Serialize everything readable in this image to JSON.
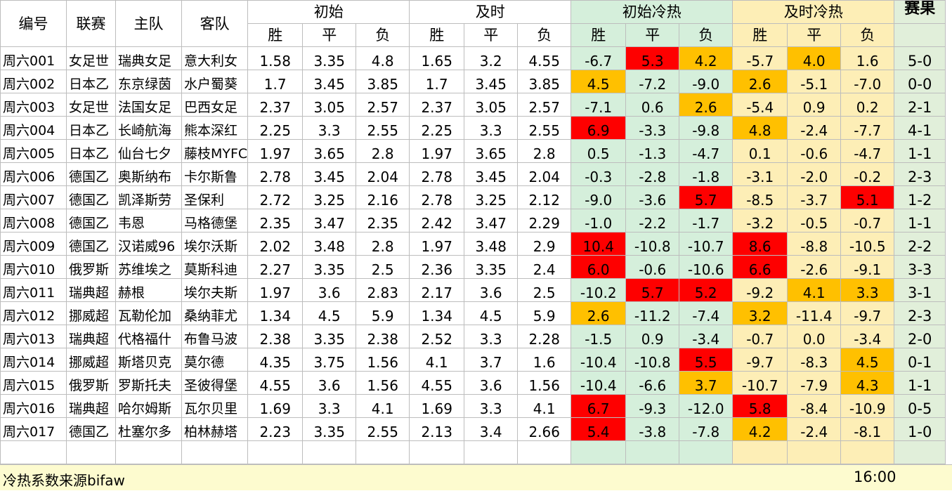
{
  "headers": {
    "id": "编号",
    "league": "联赛",
    "home": "主队",
    "away": "客队",
    "initial": "初始",
    "live": "及时",
    "initial_heat": "初始冷热",
    "live_heat": "及时冷热",
    "result": "赛果",
    "win": "胜",
    "draw": "平",
    "lose": "负"
  },
  "rows": [
    {
      "id": "周六001",
      "league": "女足世",
      "home": "瑞典女足",
      "away": "意大利女",
      "o": [
        "1.58",
        "3.35",
        "4.8"
      ],
      "l": [
        "1.65",
        "3.2",
        "4.55"
      ],
      "ih": [
        "-6.7",
        "5.3",
        "4.2"
      ],
      "lh": [
        "-5.7",
        "4.0",
        "1.6"
      ],
      "res": "5-0"
    },
    {
      "id": "周六002",
      "league": "日本乙",
      "home": "东京绿茵",
      "away": "水户蜀葵",
      "o": [
        "1.7",
        "3.45",
        "3.85"
      ],
      "l": [
        "1.7",
        "3.45",
        "3.85"
      ],
      "ih": [
        "4.5",
        "-7.2",
        "-9.0"
      ],
      "lh": [
        "2.6",
        "-5.1",
        "-7.0"
      ],
      "res": "0-0"
    },
    {
      "id": "周六003",
      "league": "女足世",
      "home": "法国女足",
      "away": "巴西女足",
      "o": [
        "2.37",
        "3.05",
        "2.57"
      ],
      "l": [
        "2.37",
        "3.05",
        "2.57"
      ],
      "ih": [
        "-7.1",
        "0.6",
        "2.6"
      ],
      "lh": [
        "-5.4",
        "0.9",
        "0.2"
      ],
      "res": "2-1"
    },
    {
      "id": "周六004",
      "league": "日本乙",
      "home": "长崎航海",
      "away": "熊本深红",
      "o": [
        "2.25",
        "3.3",
        "2.55"
      ],
      "l": [
        "2.25",
        "3.3",
        "2.55"
      ],
      "ih": [
        "6.9",
        "-3.3",
        "-9.8"
      ],
      "lh": [
        "4.8",
        "-2.4",
        "-7.7"
      ],
      "res": "4-1"
    },
    {
      "id": "周六005",
      "league": "日本乙",
      "home": "仙台七夕",
      "away": "藤枝MYFC",
      "o": [
        "1.97",
        "3.65",
        "2.8"
      ],
      "l": [
        "1.97",
        "3.65",
        "2.8"
      ],
      "ih": [
        "0.5",
        "-1.3",
        "-4.7"
      ],
      "lh": [
        "0.1",
        "-0.6",
        "-4.7"
      ],
      "res": "1-1"
    },
    {
      "id": "周六006",
      "league": "德国乙",
      "home": "奥斯纳布",
      "away": "卡尔斯鲁",
      "o": [
        "2.78",
        "3.45",
        "2.04"
      ],
      "l": [
        "2.78",
        "3.45",
        "2.04"
      ],
      "ih": [
        "-0.3",
        "-2.8",
        "-1.8"
      ],
      "lh": [
        "-3.1",
        "-2.0",
        "-0.2"
      ],
      "res": "2-3"
    },
    {
      "id": "周六007",
      "league": "德国乙",
      "home": "凯泽斯劳",
      "away": "圣保利",
      "o": [
        "2.72",
        "3.25",
        "2.16"
      ],
      "l": [
        "2.78",
        "3.25",
        "2.12"
      ],
      "ih": [
        "-9.0",
        "-3.6",
        "5.7"
      ],
      "lh": [
        "-8.5",
        "-3.7",
        "5.1"
      ],
      "res": "1-2"
    },
    {
      "id": "周六008",
      "league": "德国乙",
      "home": "韦恩",
      "away": "马格德堡",
      "o": [
        "2.35",
        "3.47",
        "2.35"
      ],
      "l": [
        "2.42",
        "3.47",
        "2.29"
      ],
      "ih": [
        "-1.0",
        "-2.2",
        "-1.7"
      ],
      "lh": [
        "-3.2",
        "-0.5",
        "-0.7"
      ],
      "res": "1-1"
    },
    {
      "id": "周六009",
      "league": "德国乙",
      "home": "汉诺威96",
      "away": "埃尔沃斯",
      "o": [
        "2.02",
        "3.48",
        "2.8"
      ],
      "l": [
        "1.97",
        "3.48",
        "2.9"
      ],
      "ih": [
        "10.4",
        "-10.8",
        "-10.7"
      ],
      "lh": [
        "8.6",
        "-8.8",
        "-10.5"
      ],
      "res": "2-2"
    },
    {
      "id": "周六010",
      "league": "俄罗斯",
      "home": "苏维埃之",
      "away": "莫斯科迪",
      "o": [
        "2.27",
        "3.35",
        "2.5"
      ],
      "l": [
        "2.36",
        "3.35",
        "2.4"
      ],
      "ih": [
        "6.0",
        "-0.6",
        "-10.6"
      ],
      "lh": [
        "6.6",
        "-2.6",
        "-9.1"
      ],
      "res": "3-3"
    },
    {
      "id": "周六011",
      "league": "瑞典超",
      "home": "赫根",
      "away": "埃尔夫斯",
      "o": [
        "1.97",
        "3.6",
        "2.83"
      ],
      "l": [
        "2.17",
        "3.6",
        "2.5"
      ],
      "ih": [
        "-10.2",
        "5.7",
        "5.2"
      ],
      "lh": [
        "-9.2",
        "4.1",
        "3.3"
      ],
      "res": "3-1"
    },
    {
      "id": "周六012",
      "league": "挪威超",
      "home": "瓦勒伦加",
      "away": "桑纳菲尤",
      "o": [
        "1.34",
        "4.5",
        "5.9"
      ],
      "l": [
        "1.34",
        "4.5",
        "5.9"
      ],
      "ih": [
        "2.6",
        "-11.2",
        "-7.4"
      ],
      "lh": [
        "3.2",
        "-11.4",
        "-9.7"
      ],
      "res": "2-3"
    },
    {
      "id": "周六013",
      "league": "瑞典超",
      "home": "代格福什",
      "away": "布鲁马波",
      "o": [
        "2.38",
        "3.35",
        "2.38"
      ],
      "l": [
        "2.52",
        "3.3",
        "2.28"
      ],
      "ih": [
        "-1.5",
        "0.9",
        "-3.4"
      ],
      "lh": [
        "-0.7",
        "0.0",
        "-3.4"
      ],
      "res": "2-0"
    },
    {
      "id": "周六014",
      "league": "挪威超",
      "home": "斯塔贝克",
      "away": "莫尔德",
      "o": [
        "4.35",
        "3.75",
        "1.56"
      ],
      "l": [
        "4.1",
        "3.7",
        "1.6"
      ],
      "ih": [
        "-10.4",
        "-10.8",
        "5.5"
      ],
      "lh": [
        "-9.7",
        "-8.3",
        "4.5"
      ],
      "res": "0-1"
    },
    {
      "id": "周六015",
      "league": "俄罗斯",
      "home": "罗斯托夫",
      "away": "圣彼得堡",
      "o": [
        "4.55",
        "3.6",
        "1.56"
      ],
      "l": [
        "4.55",
        "3.6",
        "1.56"
      ],
      "ih": [
        "-10.4",
        "-6.6",
        "3.7"
      ],
      "lh": [
        "-10.7",
        "-7.9",
        "4.3"
      ],
      "res": "1-1"
    },
    {
      "id": "周六016",
      "league": "瑞典超",
      "home": "哈尔姆斯",
      "away": "瓦尔贝里",
      "o": [
        "1.69",
        "3.3",
        "4.1"
      ],
      "l": [
        "1.69",
        "3.3",
        "4.1"
      ],
      "ih": [
        "6.7",
        "-9.3",
        "-12.0"
      ],
      "lh": [
        "5.8",
        "-8.4",
        "-10.9"
      ],
      "res": "0-5"
    },
    {
      "id": "周六017",
      "league": "德国乙",
      "home": "杜塞尔多",
      "away": "柏林赫塔",
      "o": [
        "2.23",
        "3.35",
        "2.55"
      ],
      "l": [
        "2.13",
        "3.4",
        "2.66"
      ],
      "ih": [
        "5.4",
        "-3.8",
        "-7.8"
      ],
      "lh": [
        "4.2",
        "-2.4",
        "-8.1"
      ],
      "res": "1-0"
    }
  ],
  "highlights": {
    "ih": [
      [
        "g",
        "red",
        "orange"
      ],
      [
        "orange",
        "g",
        "g"
      ],
      [
        "g",
        "g",
        "orange"
      ],
      [
        "red",
        "g",
        "g"
      ],
      [
        "g",
        "g",
        "g"
      ],
      [
        "g",
        "g",
        "g"
      ],
      [
        "g",
        "g",
        "red"
      ],
      [
        "g",
        "g",
        "g"
      ],
      [
        "red",
        "g",
        "g"
      ],
      [
        "red",
        "g",
        "g"
      ],
      [
        "g",
        "red",
        "red"
      ],
      [
        "orange",
        "g",
        "g"
      ],
      [
        "g",
        "g",
        "g"
      ],
      [
        "g",
        "g",
        "red"
      ],
      [
        "g",
        "g",
        "orange"
      ],
      [
        "red",
        "g",
        "g"
      ],
      [
        "red",
        "g",
        "g"
      ]
    ],
    "lh": [
      [
        "y",
        "orange",
        "y"
      ],
      [
        "orange",
        "y",
        "y"
      ],
      [
        "y",
        "y",
        "y"
      ],
      [
        "orange",
        "y",
        "y"
      ],
      [
        "y",
        "y",
        "y"
      ],
      [
        "y",
        "y",
        "y"
      ],
      [
        "y",
        "y",
        "red"
      ],
      [
        "y",
        "y",
        "y"
      ],
      [
        "red",
        "y",
        "y"
      ],
      [
        "red",
        "y",
        "y"
      ],
      [
        "y",
        "orange",
        "orange"
      ],
      [
        "orange",
        "y",
        "y"
      ],
      [
        "y",
        "y",
        "y"
      ],
      [
        "y",
        "y",
        "orange"
      ],
      [
        "y",
        "y",
        "orange"
      ],
      [
        "red",
        "y",
        "y"
      ],
      [
        "orange",
        "y",
        "y"
      ]
    ]
  },
  "colors": {
    "red": "#fe0000",
    "orange": "#ffc000",
    "green": "#d5efdb",
    "yellow": "#fdeeb6"
  },
  "footer": {
    "source": "冷热系数来源bifaw",
    "time": "16:00"
  }
}
